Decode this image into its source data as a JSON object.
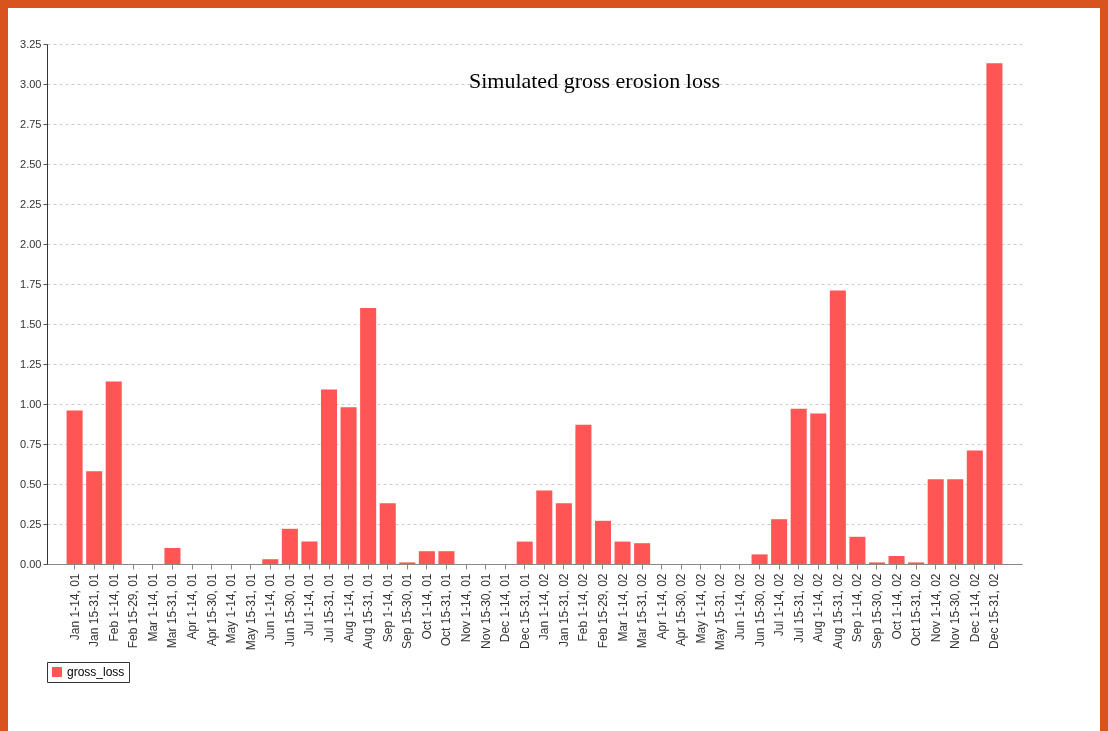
{
  "chart_data": {
    "type": "bar",
    "title": "Simulated gross erosion loss",
    "categories": [
      "Jan 1-14, 01",
      "Jan 15-31, 01",
      "Feb 1-14, 01",
      "Feb 15-29, 01",
      "Mar 1-14, 01",
      "Mar 15-31, 01",
      "Apr 1-14, 01",
      "Apr 15-30, 01",
      "May 1-14, 01",
      "May 15-31, 01",
      "Jun 1-14, 01",
      "Jun 15-30, 01",
      "Jul 1-14, 01",
      "Jul 15-31, 01",
      "Aug 1-14, 01",
      "Aug 15-31, 01",
      "Sep 1-14, 01",
      "Sep 15-30, 01",
      "Oct 1-14, 01",
      "Oct 15-31, 01",
      "Nov 1-14, 01",
      "Nov 15-30, 01",
      "Dec 1-14, 01",
      "Dec 15-31, 01",
      "Jan 1-14, 02",
      "Jan 15-31, 02",
      "Feb 1-14, 02",
      "Feb 15-29, 02",
      "Mar 1-14, 02",
      "Mar 15-31, 02",
      "Apr 1-14, 02",
      "Apr 15-30, 02",
      "May 1-14, 02",
      "May 15-31, 02",
      "Jun 1-14, 02",
      "Jun 15-30, 02",
      "Jul 1-14, 02",
      "Jul 15-31, 02",
      "Aug 1-14, 02",
      "Aug 15-31, 02",
      "Sep 1-14, 02",
      "Sep 15-30, 02",
      "Oct 1-14, 02",
      "Oct 15-31, 02",
      "Nov 1-14, 02",
      "Nov 15-30, 02",
      "Dec 1-14, 02",
      "Dec 15-31, 02"
    ],
    "series": [
      {
        "name": "gross_loss",
        "color": "#ff5555",
        "values": [
          0.96,
          0.58,
          1.14,
          0,
          0,
          0.1,
          0,
          0,
          0,
          0,
          0.03,
          0.22,
          0.14,
          1.09,
          0.98,
          1.6,
          0.38,
          0.01,
          0.08,
          0.08,
          0,
          0,
          0,
          0.14,
          0.46,
          0.38,
          0.87,
          0.27,
          0.14,
          0.13,
          0,
          0,
          0,
          0,
          0,
          0.06,
          0.28,
          0.97,
          0.94,
          1.71,
          0.17,
          0.01,
          0.05,
          0.01,
          0.53,
          0.53,
          0.71,
          3.13
        ]
      }
    ],
    "ylim": [
      0,
      3.25
    ],
    "yticks": [
      {
        "value": 0,
        "label": "0.00"
      },
      0.25,
      {
        "value": 0.5,
        "label": "0.50"
      },
      0.75,
      {
        "value": 1,
        "label": "1.00"
      },
      1.25,
      {
        "value": 1.5,
        "label": "1.50"
      },
      1.75,
      {
        "value": 2,
        "label": "2.00"
      },
      2.25,
      {
        "value": 2.5,
        "label": "2.50"
      },
      2.75,
      {
        "value": 3,
        "label": "3.00"
      },
      3.25
    ],
    "grid": "y",
    "legend": "bottom"
  }
}
